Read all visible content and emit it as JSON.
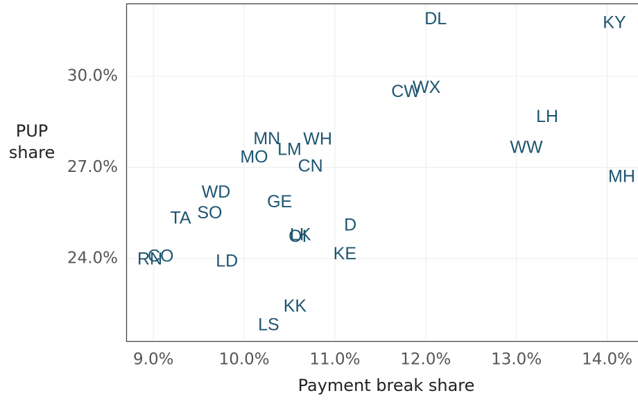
{
  "chart_data": {
    "type": "scatter",
    "x_label": "Payment break share",
    "y_label": "PUP share",
    "color": "#1d5570",
    "grid": true,
    "labels": [
      "DL",
      "KY",
      "CW",
      "WX",
      "LH",
      "WW",
      "MH",
      "MN",
      "WH",
      "LM",
      "MO",
      "CN",
      "WD",
      "GE",
      "SO",
      "TA",
      "D",
      "LK",
      "OI",
      "KE",
      "RN",
      "CO",
      "LD",
      "KK",
      "LS"
    ],
    "x": [
      12.11,
      14.08,
      11.78,
      12.01,
      13.34,
      13.11,
      14.16,
      10.25,
      10.81,
      10.5,
      10.11,
      10.73,
      9.69,
      10.39,
      9.62,
      9.3,
      11.17,
      10.62,
      10.59,
      11.11,
      8.96,
      9.08,
      9.81,
      10.56,
      10.27
    ],
    "y": [
      31.87,
      31.74,
      29.47,
      29.61,
      28.65,
      27.63,
      26.67,
      27.92,
      27.9,
      27.56,
      27.31,
      27.01,
      26.16,
      25.84,
      25.47,
      25.3,
      25.07,
      24.75,
      24.7,
      24.13,
      23.95,
      24.04,
      23.88,
      22.4,
      21.78
    ],
    "xlim": [
      8.7,
      14.34
    ],
    "ylim": [
      21.28,
      32.4
    ],
    "xticks": [
      {
        "value": 9,
        "label": "9.0%"
      },
      {
        "value": 10,
        "label": "10.0%"
      },
      {
        "value": 11,
        "label": "11.0%"
      },
      {
        "value": 12,
        "label": "12.0%"
      },
      {
        "value": 13,
        "label": "13.0%"
      },
      {
        "value": 14,
        "label": "14.0%"
      }
    ],
    "yticks": [
      {
        "value": 24,
        "label": "24.0%"
      },
      {
        "value": 27,
        "label": "27.0%"
      },
      {
        "value": 30,
        "label": "30.0%"
      }
    ]
  }
}
